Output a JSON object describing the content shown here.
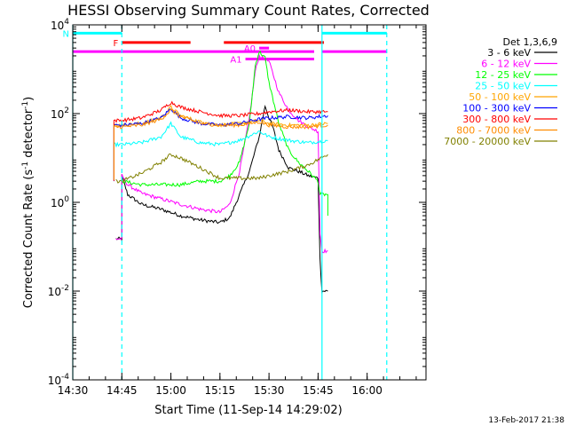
{
  "chart_data": {
    "type": "line",
    "title": "HESSI Observing Summary Count Rates, Corrected",
    "xlabel": "Start Time (11-Sep-14 14:29:02)",
    "ylabel_prefix": "Corrected Count Rate (s",
    "ylabel_sup1": "-1",
    "ylabel_mid": " detector",
    "ylabel_sup2": "-1",
    "ylabel_suffix": ")",
    "yscale": "log",
    "xlim": [
      14.5,
      16.3
    ],
    "ylim": [
      0.0001,
      10000
    ],
    "x_ticks": [
      {
        "v": 14.5,
        "label": "14:30"
      },
      {
        "v": 14.75,
        "label": "14:45"
      },
      {
        "v": 15.0,
        "label": "15:00"
      },
      {
        "v": 15.25,
        "label": "15:15"
      },
      {
        "v": 15.5,
        "label": "15:30"
      },
      {
        "v": 15.75,
        "label": "15:45"
      },
      {
        "v": 16.0,
        "label": "16:00"
      }
    ],
    "y_ticks": [
      {
        "v": 10000,
        "base": "10",
        "exp": "4"
      },
      {
        "v": 100,
        "base": "10",
        "exp": "2"
      },
      {
        "v": 1,
        "base": "10",
        "exp": "0"
      },
      {
        "v": 0.01,
        "base": "10",
        "exp": "-2"
      },
      {
        "v": 0.0001,
        "base": "10",
        "exp": "-4"
      }
    ],
    "legend_title": "Det 1,3,6,9",
    "series": [
      {
        "name": "3 - 6 keV",
        "color": "#000000",
        "x": [
          14.72,
          14.75,
          14.75,
          14.78,
          14.85,
          14.95,
          15.05,
          15.15,
          15.25,
          15.3,
          15.35,
          15.4,
          15.45,
          15.48,
          15.5,
          15.52,
          15.55,
          15.6,
          15.65,
          15.7,
          15.75,
          15.76,
          15.77,
          15.8
        ],
        "y": [
          0.15,
          0.15,
          4,
          1.5,
          0.9,
          0.7,
          0.5,
          0.4,
          0.35,
          0.45,
          1.5,
          5,
          30,
          150,
          80,
          50,
          15,
          6,
          5,
          4,
          3.5,
          0.05,
          0.01,
          0.01
        ]
      },
      {
        "name": "6 - 12 keV",
        "color": "#ff00ff",
        "x": [
          14.72,
          14.75,
          14.75,
          14.78,
          14.85,
          14.95,
          15.05,
          15.15,
          15.25,
          15.3,
          15.35,
          15.4,
          15.43,
          15.45,
          15.5,
          15.55,
          15.6,
          15.65,
          15.7,
          15.75,
          15.76,
          15.77,
          15.8
        ],
        "y": [
          0.15,
          0.15,
          4,
          2.5,
          1.6,
          1.2,
          0.9,
          0.7,
          0.6,
          0.9,
          5,
          80,
          900,
          2000,
          1500,
          300,
          120,
          70,
          50,
          40,
          0.2,
          0.08,
          0.08
        ]
      },
      {
        "name": "12 - 25 keV",
        "color": "#00ff00",
        "x": [
          14.75,
          14.75,
          14.85,
          14.95,
          15.05,
          15.15,
          15.25,
          15.3,
          15.35,
          15.4,
          15.43,
          15.45,
          15.48,
          15.5,
          15.55,
          15.6,
          15.65,
          15.7,
          15.75,
          15.76,
          15.8,
          15.8
        ],
        "y": [
          3,
          3,
          2.5,
          2.5,
          2.5,
          3,
          3,
          4,
          8,
          60,
          1200,
          2500,
          1800,
          500,
          60,
          15,
          8,
          5,
          3,
          1.5,
          1.5,
          0.5
        ]
      },
      {
        "name": "25 - 50 keV",
        "color": "#00ffff",
        "x": [
          14.71,
          14.71,
          14.75,
          14.85,
          14.95,
          15.0,
          15.05,
          15.15,
          15.25,
          15.35,
          15.45,
          15.5,
          15.6,
          15.7,
          15.8
        ],
        "y": [
          3,
          20,
          20,
          22,
          30,
          60,
          30,
          22,
          20,
          25,
          40,
          30,
          25,
          22,
          25
        ]
      },
      {
        "name": "50 - 100 keV",
        "color": "#ffa500",
        "x": [
          14.71,
          14.71,
          14.75,
          14.85,
          14.95,
          15.0,
          15.05,
          15.15,
          15.25,
          15.35,
          15.45,
          15.5,
          15.6,
          15.7,
          15.8
        ],
        "y": [
          3,
          55,
          55,
          60,
          80,
          140,
          90,
          65,
          55,
          60,
          70,
          60,
          55,
          55,
          60
        ]
      },
      {
        "name": "100 - 300 keV",
        "color": "#0000ff",
        "x": [
          14.71,
          14.71,
          14.75,
          14.85,
          14.95,
          15.0,
          15.05,
          15.15,
          15.25,
          15.35,
          15.45,
          15.5,
          15.6,
          15.7,
          15.8
        ],
        "y": [
          3,
          55,
          55,
          60,
          80,
          130,
          80,
          60,
          55,
          60,
          75,
          80,
          85,
          80,
          90
        ]
      },
      {
        "name": "300 - 800 keV",
        "color": "#ff0000",
        "x": [
          14.71,
          14.71,
          14.75,
          14.85,
          14.95,
          15.0,
          15.05,
          15.15,
          15.25,
          15.35,
          15.45,
          15.5,
          15.6,
          15.7,
          15.8
        ],
        "y": [
          3,
          70,
          70,
          80,
          120,
          180,
          140,
          110,
          90,
          90,
          100,
          110,
          120,
          110,
          110
        ]
      },
      {
        "name": "800 - 7000 keV",
        "color": "#ff8c00",
        "x": [
          14.71,
          14.71,
          14.75,
          14.85,
          14.95,
          15.0,
          15.05,
          15.15,
          15.25,
          15.35,
          15.45,
          15.5,
          15.6,
          15.7,
          15.8
        ],
        "y": [
          3,
          50,
          50,
          55,
          75,
          120,
          85,
          60,
          55,
          55,
          65,
          55,
          50,
          50,
          55
        ]
      },
      {
        "name": "7000 - 20000 keV",
        "color": "#808000",
        "x": [
          14.72,
          14.75,
          14.85,
          14.95,
          15.0,
          15.05,
          15.15,
          15.25,
          15.35,
          15.45,
          15.5,
          15.6,
          15.7,
          15.8
        ],
        "y": [
          3,
          3,
          4.5,
          8,
          12,
          10,
          6,
          3.5,
          3.5,
          3.5,
          4,
          5,
          7,
          12
        ]
      }
    ],
    "flag_bars": [
      {
        "label": "N",
        "color": "#00ffff",
        "segments": [
          [
            14.5,
            14.75
          ],
          [
            15.77,
            16.1
          ]
        ],
        "y": 6500
      },
      {
        "label": "F",
        "color": "#ff0000",
        "segments": [
          [
            14.75,
            15.1
          ],
          [
            15.27,
            15.78
          ]
        ],
        "y": 4000
      },
      {
        "label": "A0",
        "color": "#ff00ff",
        "segments": [
          [
            15.45,
            15.5
          ]
        ],
        "y": 3000
      },
      {
        "label": "A1",
        "color": "#ff00ff",
        "segments": [
          [
            15.38,
            15.73
          ]
        ],
        "y": 1700
      },
      {
        "label": "",
        "color": "#ff00ff",
        "segments": [
          [
            14.5,
            15.73
          ],
          [
            15.77,
            16.1
          ]
        ],
        "y": 2500
      }
    ],
    "vlines": [
      {
        "x": 14.5,
        "style": "solid",
        "color": "#00ffff"
      },
      {
        "x": 14.75,
        "style": "dashed",
        "color": "#00ffff"
      },
      {
        "x": 15.77,
        "style": "solid",
        "color": "#00ffff"
      },
      {
        "x": 16.1,
        "style": "dashed",
        "color": "#00ffff"
      }
    ]
  },
  "footer_date": "13-Feb-2017 21:38"
}
